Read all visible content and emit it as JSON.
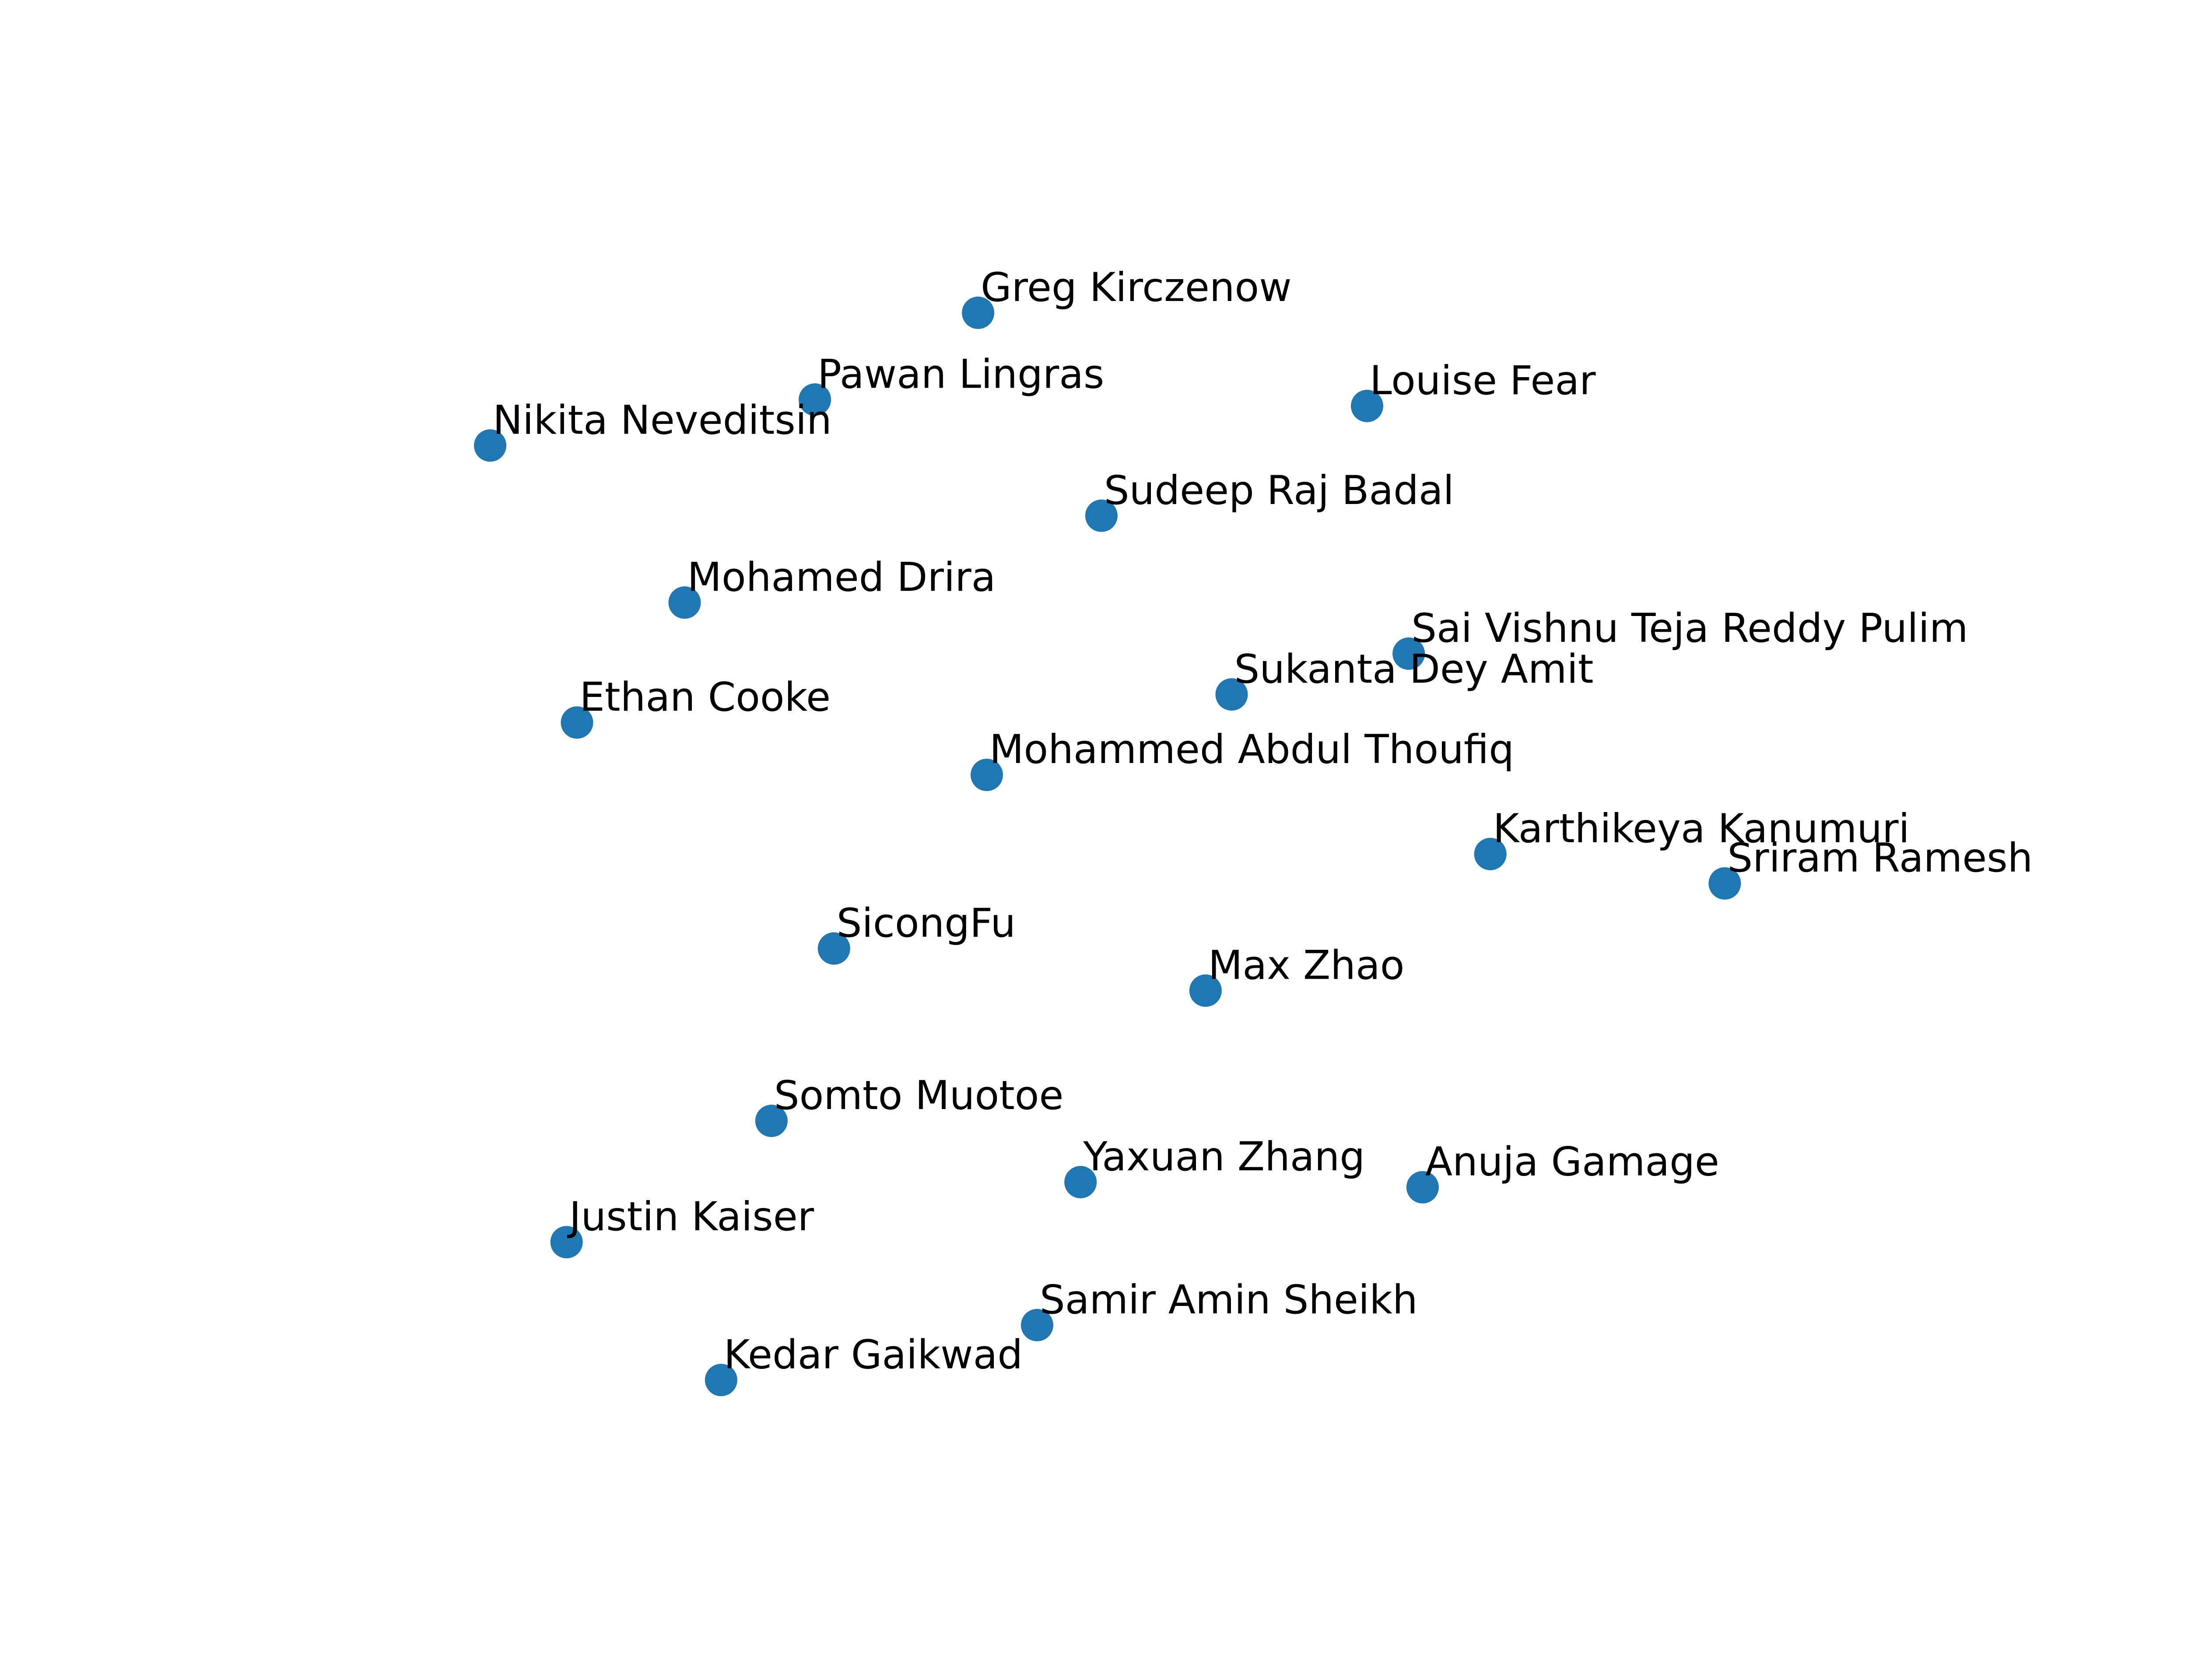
{
  "chart_data": {
    "type": "scatter",
    "title": "",
    "xlabel": "",
    "ylabel": "",
    "axes_visible": false,
    "grid": false,
    "legend": "none",
    "xlim": [
      0,
      1
    ],
    "ylim": [
      0,
      1
    ],
    "marker_color": "#1f77b4",
    "label_color": "#000000",
    "points": [
      {
        "label": "Greg Kirczenow",
        "x": 0.402,
        "y": 0.913
      },
      {
        "label": "Pawan Lingras",
        "x": 0.308,
        "y": 0.845
      },
      {
        "label": "Louise Fear",
        "x": 0.626,
        "y": 0.84
      },
      {
        "label": "Nikita Neveditsin",
        "x": 0.121,
        "y": 0.809
      },
      {
        "label": "Sudeep Raj Badal",
        "x": 0.473,
        "y": 0.754
      },
      {
        "label": "Mohamed Drira",
        "x": 0.233,
        "y": 0.686
      },
      {
        "label": "Sai Vishnu Teja Reddy Pulim",
        "x": 0.65,
        "y": 0.646
      },
      {
        "label": "Sukanta Dey Amit",
        "x": 0.548,
        "y": 0.614
      },
      {
        "label": "Ethan Cooke",
        "x": 0.171,
        "y": 0.592
      },
      {
        "label": "Mohammed Abdul Thoufiq",
        "x": 0.407,
        "y": 0.551
      },
      {
        "label": "Karthikeya Kanumuri",
        "x": 0.697,
        "y": 0.489
      },
      {
        "label": "Sriram Ramesh",
        "x": 0.832,
        "y": 0.466
      },
      {
        "label": "SicongFu",
        "x": 0.319,
        "y": 0.415
      },
      {
        "label": "Max Zhao",
        "x": 0.533,
        "y": 0.382
      },
      {
        "label": "Somto Muotoe",
        "x": 0.283,
        "y": 0.28
      },
      {
        "label": "Yaxuan Zhang",
        "x": 0.461,
        "y": 0.232
      },
      {
        "label": "Anuja Gamage",
        "x": 0.658,
        "y": 0.228
      },
      {
        "label": "Justin Kaiser",
        "x": 0.165,
        "y": 0.185
      },
      {
        "label": "Samir Amin Sheikh",
        "x": 0.436,
        "y": 0.12
      },
      {
        "label": "Kedar Gaikwad",
        "x": 0.254,
        "y": 0.077
      }
    ]
  }
}
